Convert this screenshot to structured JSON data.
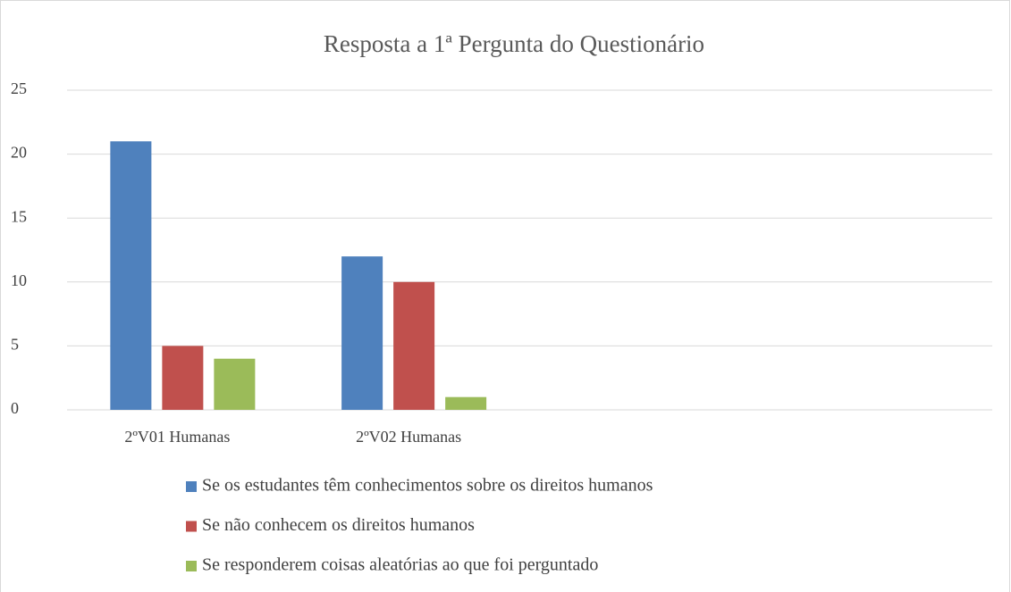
{
  "chart_data": {
    "type": "bar",
    "title": "Resposta a 1ª Pergunta do Questionário",
    "categories": [
      "2ºV01 Humanas",
      "2ºV02 Humanas",
      null,
      null
    ],
    "series": [
      {
        "name": "Se os estudantes têm conhecimentos sobre os direitos humanos",
        "color": "#4f81bd",
        "values": [
          21,
          12,
          null,
          null
        ]
      },
      {
        "name": "Se não conhecem os direitos humanos",
        "color": "#c0504d",
        "values": [
          5,
          10,
          null,
          null
        ]
      },
      {
        "name": "Se responderem coisas aleatórias ao que foi perguntado",
        "color": "#9bbb59",
        "values": [
          4,
          1,
          null,
          null
        ]
      }
    ],
    "ylim": [
      0,
      25
    ],
    "yticks": [
      0,
      5,
      10,
      15,
      20,
      25
    ],
    "grid": true,
    "legend": "bottom"
  }
}
